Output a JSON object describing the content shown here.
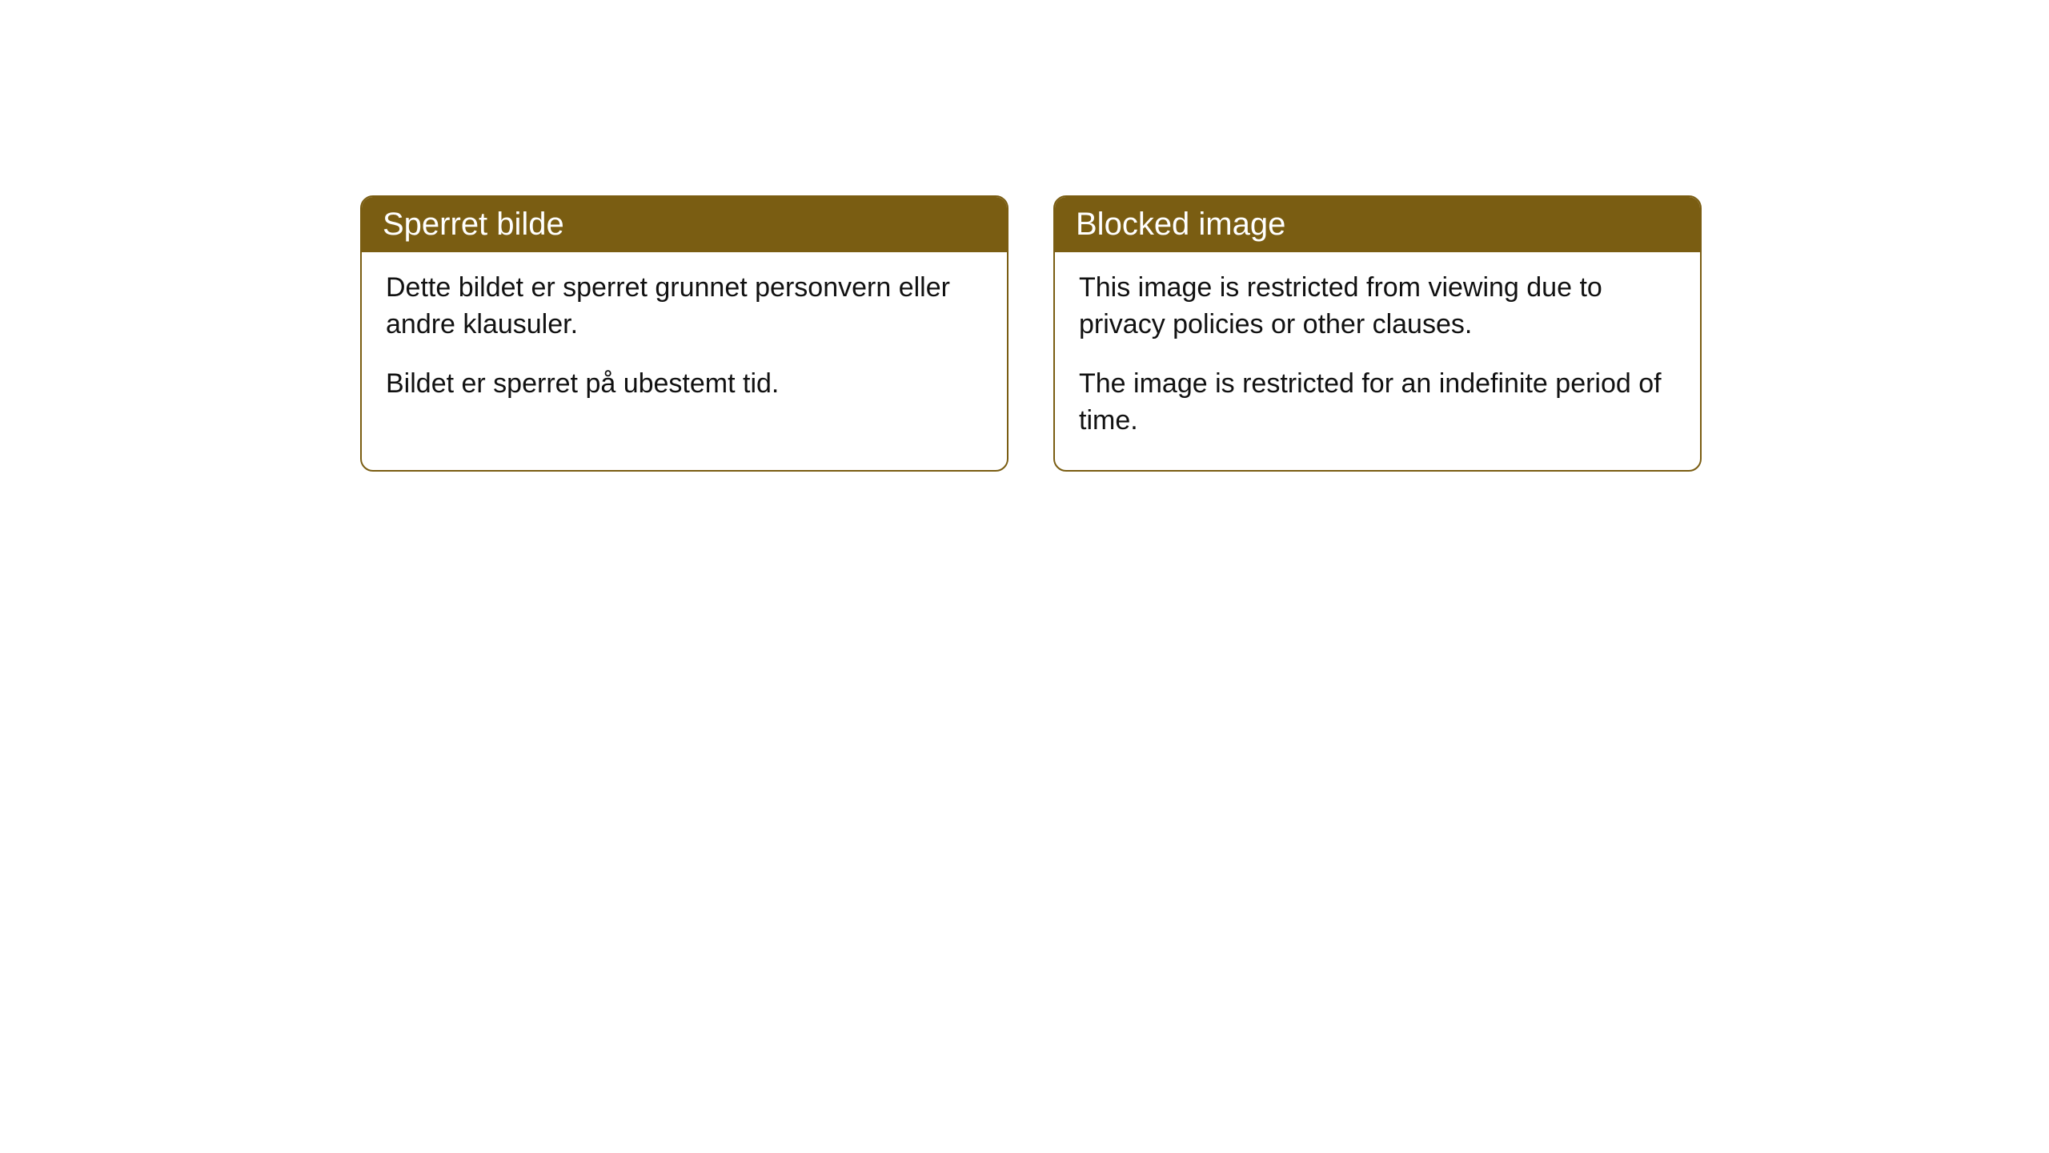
{
  "cards": [
    {
      "title": "Sperret bilde",
      "paragraphs": [
        "Dette bildet er sperret grunnet personvern eller andre klausuler.",
        "Bildet er sperret på ubestemt tid."
      ]
    },
    {
      "title": "Blocked image",
      "paragraphs": [
        "This image is restricted from viewing due to privacy policies or other clauses.",
        "The image is restricted for an indefinite period of time."
      ]
    }
  ],
  "styling": {
    "header_background": "#7a5d12",
    "header_text_color": "#ffffff",
    "body_text_color": "#111111",
    "card_border_color": "#7a5d12",
    "card_background": "#ffffff",
    "page_background": "#ffffff",
    "border_radius": 16,
    "header_font_size": 40,
    "body_font_size": 34
  }
}
